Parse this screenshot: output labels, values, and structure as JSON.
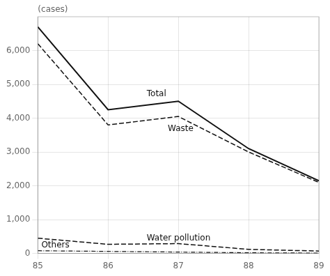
{
  "chart_data": {
    "type": "line",
    "y_label": "(cases)",
    "x": [
      85,
      86,
      87,
      88,
      89
    ],
    "color": "#111111",
    "series": [
      {
        "name": "Total",
        "values": [
          6700,
          4250,
          4500,
          3100,
          2150
        ],
        "line_style": "solid"
      },
      {
        "name": "Waste",
        "values": [
          6200,
          3800,
          4050,
          3000,
          2100
        ],
        "line_style": "dashed"
      },
      {
        "name": "Water pollution",
        "values": [
          450,
          270,
          290,
          120,
          70
        ],
        "line_style": "dashed"
      },
      {
        "name": "Others",
        "values": [
          80,
          60,
          40,
          20,
          10
        ],
        "line_style": "dashdot"
      }
    ],
    "annotations": [
      {
        "text": "Total",
        "x": 86.55,
        "y": 4650
      },
      {
        "text": "Waste",
        "x": 86.85,
        "y": 3620
      },
      {
        "text": "Water pollution",
        "x": 86.55,
        "y": 390
      },
      {
        "text": "Others",
        "x": 85.05,
        "y": 180
      }
    ],
    "xlim": [
      85,
      89
    ],
    "xticks": [
      85,
      86,
      87,
      88,
      89
    ],
    "ylim": [
      0,
      7000
    ],
    "yticks": [
      0,
      {
        "value": 1000,
        "label": "1,000"
      },
      {
        "value": 2000,
        "label": "2,000"
      },
      {
        "value": 3000,
        "label": "3,000"
      },
      {
        "value": 4000,
        "label": "4,000"
      },
      {
        "value": 5000,
        "label": "5,000"
      },
      {
        "value": 6000,
        "label": "6,000"
      }
    ],
    "grid": true,
    "legend": false
  }
}
